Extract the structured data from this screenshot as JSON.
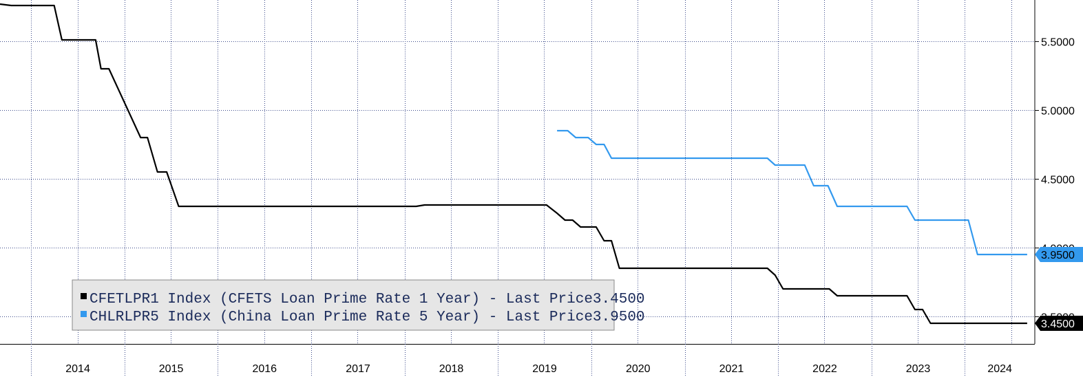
{
  "chart_data": {
    "type": "line",
    "x_type": "date",
    "xlim": [
      "2013-09-01",
      "2024-10-01"
    ],
    "ylim": [
      3.3,
      5.8
    ],
    "y_ticks": [
      "5.5000",
      "5.0000",
      "4.5000",
      "4.0000",
      "3.5000"
    ],
    "x_ticks": [
      "2014",
      "2015",
      "2016",
      "2017",
      "2018",
      "2019",
      "2020",
      "2021",
      "2022",
      "2023",
      "2024"
    ],
    "grid": true,
    "legend_position": "bottom-left",
    "series": [
      {
        "name": "CFETLPR1 Index (CFETS Loan Prime Rate 1 Year) - Last Price",
        "last_price": "3.4500",
        "color": "#000000",
        "points": [
          [
            "2013-09-01",
            5.77
          ],
          [
            "2013-10-15",
            5.76
          ],
          [
            "2014-04-01",
            5.76
          ],
          [
            "2014-05-01",
            5.51
          ],
          [
            "2014-08-01",
            5.51
          ],
          [
            "2014-09-10",
            5.51
          ],
          [
            "2014-10-01",
            5.3
          ],
          [
            "2014-11-01",
            5.3
          ],
          [
            "2015-03-05",
            4.8
          ],
          [
            "2015-04-01",
            4.8
          ],
          [
            "2015-05-10",
            4.55
          ],
          [
            "2015-06-15",
            4.55
          ],
          [
            "2015-08-01",
            4.3
          ],
          [
            "2018-02-15",
            4.3
          ],
          [
            "2018-03-20",
            4.31
          ],
          [
            "2019-07-10",
            4.31
          ],
          [
            "2019-08-20",
            4.25
          ],
          [
            "2019-09-20",
            4.2
          ],
          [
            "2019-10-20",
            4.2
          ],
          [
            "2019-11-20",
            4.15
          ],
          [
            "2020-01-20",
            4.15
          ],
          [
            "2020-02-20",
            4.05
          ],
          [
            "2020-03-20",
            4.05
          ],
          [
            "2020-04-20",
            3.85
          ],
          [
            "2021-11-20",
            3.85
          ],
          [
            "2021-12-20",
            3.8
          ],
          [
            "2022-01-20",
            3.7
          ],
          [
            "2022-07-20",
            3.7
          ],
          [
            "2022-08-20",
            3.65
          ],
          [
            "2023-05-20",
            3.65
          ],
          [
            "2023-06-20",
            3.55
          ],
          [
            "2023-07-20",
            3.55
          ],
          [
            "2023-08-20",
            3.45
          ],
          [
            "2024-09-01",
            3.45
          ]
        ]
      },
      {
        "name": "CHLRLPR5 Index (China Loan Prime Rate 5 Year) - Last Price",
        "last_price": "3.9500",
        "color": "#3399ee",
        "points": [
          [
            "2019-08-20",
            4.85
          ],
          [
            "2019-10-01",
            4.85
          ],
          [
            "2019-11-01",
            4.8
          ],
          [
            "2019-12-20",
            4.8
          ],
          [
            "2020-01-20",
            4.75
          ],
          [
            "2020-02-20",
            4.75
          ],
          [
            "2020-03-20",
            4.65
          ],
          [
            "2021-11-20",
            4.65
          ],
          [
            "2021-12-20",
            4.6
          ],
          [
            "2022-04-15",
            4.6
          ],
          [
            "2022-05-20",
            4.45
          ],
          [
            "2022-07-15",
            4.45
          ],
          [
            "2022-08-20",
            4.3
          ],
          [
            "2023-05-20",
            4.3
          ],
          [
            "2023-06-20",
            4.2
          ],
          [
            "2024-01-15",
            4.2
          ],
          [
            "2024-02-20",
            3.95
          ],
          [
            "2024-09-01",
            3.95
          ]
        ]
      }
    ]
  }
}
